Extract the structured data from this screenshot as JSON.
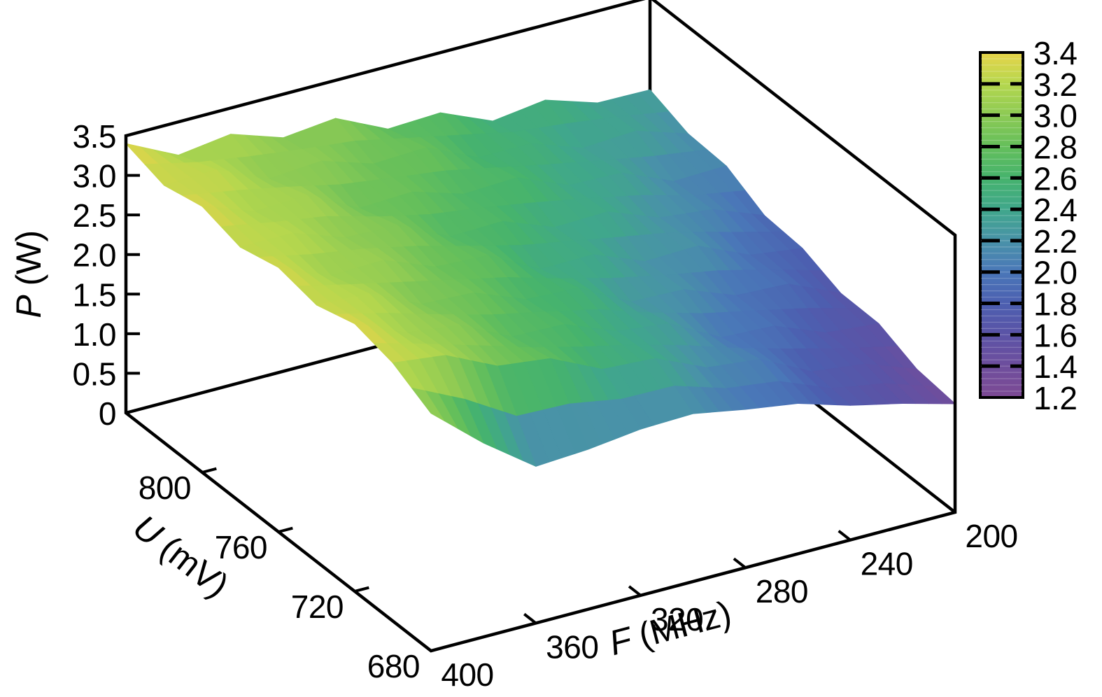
{
  "figure": {
    "background": "#ffffff",
    "line_color": "#000000"
  },
  "chart_data": {
    "type": "surface3d",
    "title": "",
    "x_axis": {
      "label_var": "F",
      "label_rest": " (MHz)",
      "tick_labels": [
        "400",
        "360",
        "320",
        "280",
        "240",
        "200"
      ],
      "tick_values": [
        400,
        360,
        320,
        280,
        240,
        200
      ],
      "range": [
        200,
        400
      ]
    },
    "y_axis": {
      "label_var": "U",
      "label_rest": " (mV)",
      "tick_labels": [
        "800",
        "760",
        "720",
        "680"
      ],
      "tick_values": [
        800,
        760,
        720,
        680
      ],
      "range": [
        680,
        840
      ]
    },
    "z_axis": {
      "label_var": "P",
      "label_rest": " (W)",
      "tick_labels": [
        "3.5",
        "3.0",
        "2.5",
        "2.0",
        "1.5",
        "1.0",
        "0.5",
        "0"
      ],
      "tick_values": [
        3.5,
        3.0,
        2.5,
        2.0,
        1.5,
        1.0,
        0.5,
        0
      ],
      "range": [
        0,
        3.5
      ]
    },
    "colorbar": {
      "min": 1.2,
      "max": 3.4,
      "tick_labels": [
        "3.4",
        "3.2",
        "3.0",
        "2.8",
        "2.6",
        "2.4",
        "2.2",
        "2.0",
        "1.8",
        "1.6",
        "1.4",
        "1.2"
      ],
      "tick_values": [
        3.4,
        3.2,
        3.0,
        2.8,
        2.6,
        2.4,
        2.2,
        2.0,
        1.8,
        1.6,
        1.4,
        1.2
      ],
      "inner_tick_values": [
        3.2,
        3.0,
        2.8,
        2.6,
        2.4,
        2.2,
        2.0,
        1.8,
        1.6,
        1.4
      ],
      "stops": [
        {
          "v": 1.2,
          "c": "#7d4a94"
        },
        {
          "v": 1.4,
          "c": "#6e4e9d"
        },
        {
          "v": 1.6,
          "c": "#5b53a6"
        },
        {
          "v": 1.8,
          "c": "#4c5fb0"
        },
        {
          "v": 2.0,
          "c": "#4a77b8"
        },
        {
          "v": 2.2,
          "c": "#4992a8"
        },
        {
          "v": 2.4,
          "c": "#40a78b"
        },
        {
          "v": 2.6,
          "c": "#46b36d"
        },
        {
          "v": 2.8,
          "c": "#65bf5b"
        },
        {
          "v": 3.0,
          "c": "#8cca54"
        },
        {
          "v": 3.2,
          "c": "#b5d74e"
        },
        {
          "v": 3.4,
          "c": "#e7d44a"
        }
      ]
    },
    "surface": {
      "F": [
        400,
        380,
        360,
        340,
        320,
        300,
        280,
        260,
        240,
        220,
        200
      ],
      "U": [
        840,
        820,
        800,
        780,
        760,
        740,
        720,
        700,
        680
      ],
      "P": [
        [
          3.4,
          3.08,
          3.17,
          2.95,
          3.02,
          2.71,
          2.74,
          2.46,
          2.55,
          2.34,
          2.33
        ],
        [
          3.25,
          3.27,
          2.98,
          3.03,
          2.82,
          2.85,
          2.55,
          2.55,
          2.32,
          2.36,
          2.15
        ],
        [
          3.36,
          3.12,
          3.15,
          2.81,
          2.84,
          2.64,
          2.67,
          2.4,
          2.38,
          2.1,
          2.12
        ],
        [
          3.22,
          3.22,
          2.99,
          2.97,
          2.65,
          2.67,
          2.42,
          2.44,
          2.19,
          2.12,
          1.87
        ],
        [
          3.34,
          3.06,
          3.08,
          2.82,
          2.79,
          2.44,
          2.45,
          2.19,
          2.21,
          1.92,
          1.83
        ],
        [
          3.24,
          3.21,
          2.9,
          2.87,
          2.61,
          2.58,
          2.23,
          2.21,
          1.96,
          1.93,
          1.64
        ],
        [
          3.38,
          3.09,
          3.01,
          2.69,
          2.67,
          2.41,
          2.33,
          1.98,
          1.95,
          1.69,
          1.63
        ],
        [
          3.26,
          3.18,
          2.87,
          2.79,
          2.48,
          2.44,
          2.15,
          2.08,
          1.75,
          1.67,
          1.43
        ],
        [
          3.0,
          2.45,
          1.98,
          2.02,
          2.1,
          2.12,
          2.0,
          1.9,
          1.7,
          1.55,
          1.37
        ]
      ]
    }
  }
}
